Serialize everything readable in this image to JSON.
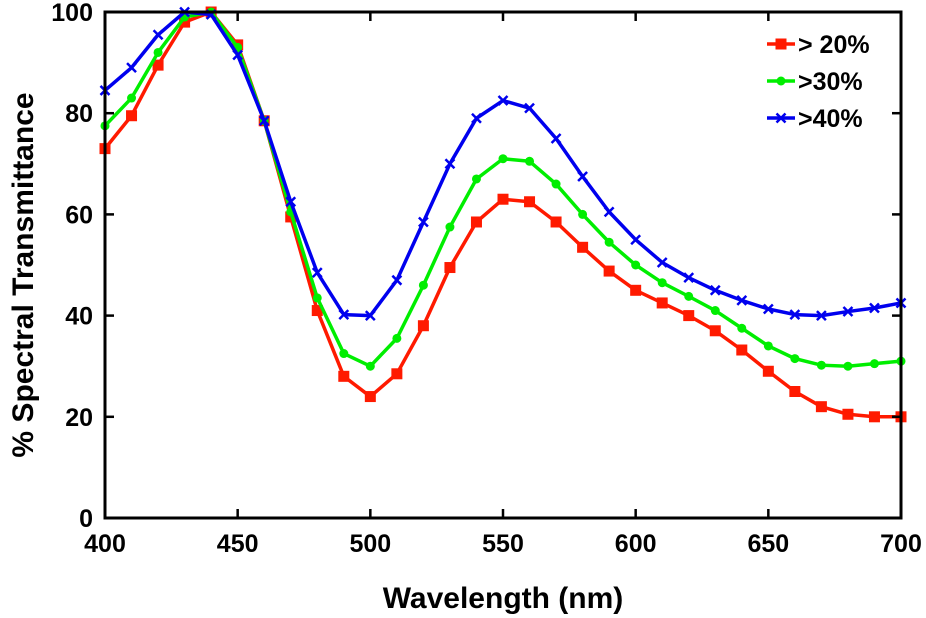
{
  "chart_data": {
    "type": "line",
    "title": "",
    "xlabel": "Wavelength (nm)",
    "ylabel": "% Spectral Transmittance",
    "xlim": [
      400,
      700
    ],
    "ylim": [
      0,
      100
    ],
    "xticks": [
      400,
      450,
      500,
      550,
      600,
      650,
      700
    ],
    "yticks": [
      0,
      20,
      40,
      60,
      80,
      100
    ],
    "grid": false,
    "legend_position": "top-right",
    "x": [
      400,
      410,
      420,
      430,
      440,
      450,
      460,
      470,
      480,
      490,
      500,
      510,
      520,
      530,
      540,
      550,
      560,
      570,
      580,
      590,
      600,
      610,
      620,
      630,
      640,
      650,
      660,
      670,
      680,
      690,
      700
    ],
    "series": [
      {
        "name": "> 20%",
        "color": "#ff1a00",
        "marker": "square",
        "values": [
          73,
          79.5,
          89.5,
          98,
          100,
          93.5,
          78.5,
          59.5,
          41,
          28,
          24,
          28.5,
          38,
          49.5,
          58.5,
          63,
          62.5,
          58.5,
          53.5,
          48.8,
          45,
          42.5,
          40,
          37,
          33.2,
          29,
          25,
          22,
          20.5,
          20,
          20
        ]
      },
      {
        "name": ">30%",
        "color": "#00ee00",
        "marker": "circle",
        "values": [
          77.5,
          83,
          92,
          99,
          100,
          93,
          78.5,
          60.5,
          43.5,
          32.5,
          30,
          35.5,
          46,
          57.5,
          67,
          71,
          70.5,
          66,
          60,
          54.5,
          50,
          46.5,
          43.8,
          41,
          37.5,
          34,
          31.5,
          30.2,
          30,
          30.5,
          31
        ]
      },
      {
        "name": ">40%",
        "color": "#0000ee",
        "marker": "x",
        "values": [
          84.5,
          89,
          95.5,
          100,
          99.5,
          91.5,
          78.5,
          62.5,
          48.5,
          40.2,
          40,
          47,
          58.5,
          70,
          79,
          82.5,
          81,
          75,
          67.5,
          60.5,
          55,
          50.5,
          47.5,
          45,
          43,
          41.3,
          40.2,
          40,
          40.8,
          41.5,
          42.5
        ]
      }
    ]
  }
}
